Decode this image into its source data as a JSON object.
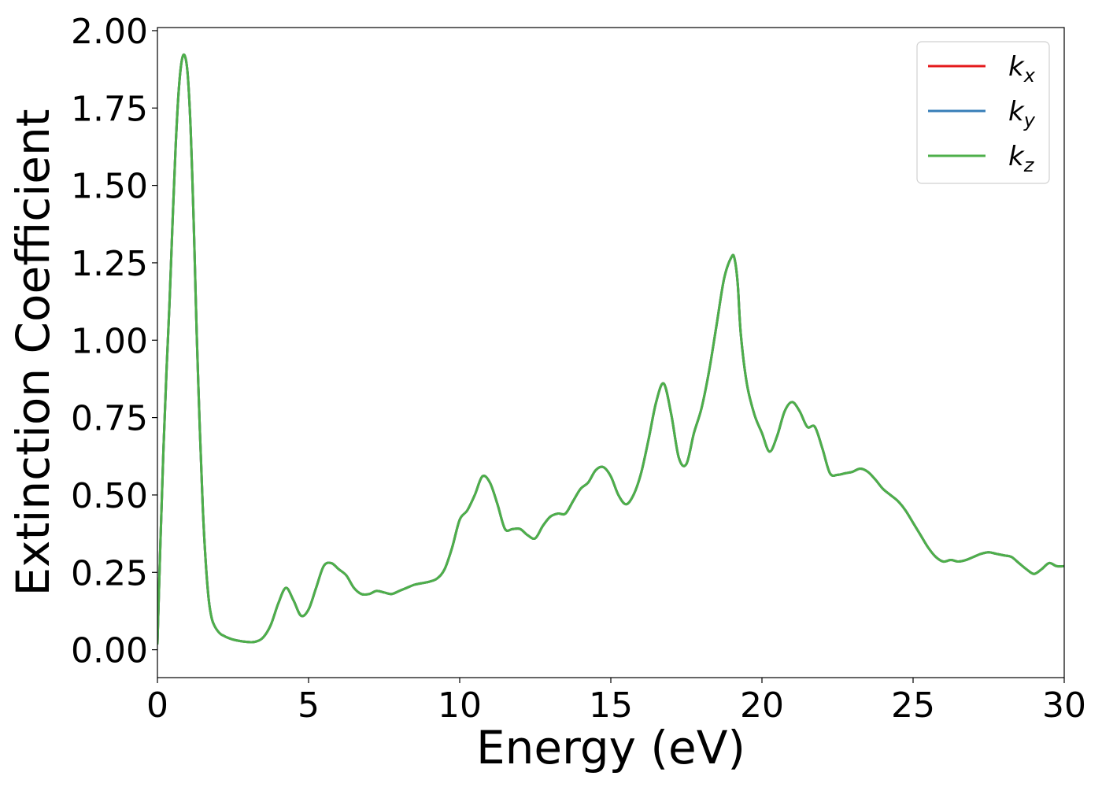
{
  "chart_data": {
    "type": "line",
    "title": "",
    "xlabel": "Energy (eV)",
    "ylabel": "Extinction Coefficient",
    "xlim": [
      0,
      30
    ],
    "ylim": [
      -0.09,
      2.01
    ],
    "xticks": [
      0,
      5,
      10,
      15,
      20,
      25,
      30
    ],
    "xtick_labels": [
      "0",
      "5",
      "10",
      "15",
      "20",
      "25",
      "30"
    ],
    "yticks": [
      0.0,
      0.25,
      0.5,
      0.75,
      1.0,
      1.25,
      1.5,
      1.75,
      2.0
    ],
    "ytick_labels": [
      "0.00",
      "0.25",
      "0.50",
      "0.75",
      "1.00",
      "1.25",
      "1.50",
      "1.75",
      "2.00"
    ],
    "grid": false,
    "legend_position": "top-right",
    "x": [
      0,
      0.1,
      0.2,
      0.3,
      0.4,
      0.5,
      0.6,
      0.7,
      0.8,
      0.9,
      1.0,
      1.1,
      1.2,
      1.25,
      1.3,
      1.4,
      1.5,
      1.6,
      1.7,
      1.8,
      1.9,
      2.0,
      2.1,
      2.2,
      2.3,
      2.5,
      2.75,
      3.0,
      3.25,
      3.5,
      3.75,
      4.0,
      4.25,
      4.5,
      4.75,
      5.0,
      5.25,
      5.5,
      5.75,
      6.0,
      6.25,
      6.5,
      6.75,
      7.0,
      7.25,
      7.5,
      7.75,
      8.0,
      8.25,
      8.5,
      8.75,
      9.0,
      9.25,
      9.5,
      9.75,
      10.0,
      10.25,
      10.5,
      10.75,
      11.0,
      11.25,
      11.5,
      11.75,
      12.0,
      12.25,
      12.5,
      12.75,
      13.0,
      13.25,
      13.5,
      13.75,
      14.0,
      14.25,
      14.5,
      14.75,
      15.0,
      15.25,
      15.5,
      15.75,
      16.0,
      16.25,
      16.5,
      16.75,
      17.0,
      17.25,
      17.5,
      17.75,
      18.0,
      18.25,
      18.5,
      18.75,
      19.0,
      19.1,
      19.2,
      19.3,
      19.5,
      19.75,
      20.0,
      20.25,
      20.5,
      20.75,
      21.0,
      21.25,
      21.5,
      21.75,
      22.0,
      22.25,
      22.5,
      22.75,
      23.0,
      23.25,
      23.5,
      23.75,
      24.0,
      24.25,
      24.5,
      24.75,
      25.0,
      25.25,
      25.5,
      25.75,
      26.0,
      26.25,
      26.5,
      26.75,
      27.0,
      27.25,
      27.5,
      27.75,
      28.0,
      28.25,
      28.5,
      28.75,
      29.0,
      29.25,
      29.5,
      29.75,
      30.0
    ],
    "series": [
      {
        "name": "k_x",
        "color": "#e41a1c",
        "y": [
          0.02,
          0.35,
          0.65,
          0.9,
          1.12,
          1.38,
          1.62,
          1.8,
          1.9,
          1.92,
          1.86,
          1.68,
          1.38,
          1.2,
          1.02,
          0.72,
          0.46,
          0.28,
          0.16,
          0.1,
          0.075,
          0.06,
          0.05,
          0.045,
          0.04,
          0.033,
          0.028,
          0.025,
          0.026,
          0.04,
          0.08,
          0.15,
          0.2,
          0.16,
          0.11,
          0.13,
          0.2,
          0.27,
          0.28,
          0.26,
          0.24,
          0.2,
          0.18,
          0.18,
          0.19,
          0.185,
          0.18,
          0.19,
          0.2,
          0.21,
          0.215,
          0.22,
          0.23,
          0.26,
          0.33,
          0.42,
          0.45,
          0.5,
          0.56,
          0.54,
          0.47,
          0.39,
          0.39,
          0.39,
          0.37,
          0.36,
          0.4,
          0.43,
          0.44,
          0.44,
          0.48,
          0.52,
          0.54,
          0.58,
          0.59,
          0.56,
          0.5,
          0.47,
          0.5,
          0.57,
          0.68,
          0.8,
          0.86,
          0.76,
          0.62,
          0.6,
          0.7,
          0.78,
          0.9,
          1.05,
          1.2,
          1.27,
          1.26,
          1.18,
          1.02,
          0.86,
          0.76,
          0.7,
          0.64,
          0.69,
          0.77,
          0.8,
          0.77,
          0.72,
          0.72,
          0.65,
          0.57,
          0.565,
          0.57,
          0.575,
          0.585,
          0.575,
          0.55,
          0.52,
          0.5,
          0.48,
          0.45,
          0.41,
          0.37,
          0.33,
          0.3,
          0.285,
          0.29,
          0.285,
          0.29,
          0.3,
          0.31,
          0.315,
          0.31,
          0.305,
          0.3,
          0.28,
          0.26,
          0.245,
          0.26,
          0.28,
          0.27,
          0.27
        ]
      },
      {
        "name": "k_y",
        "color": "#377eb8",
        "y": [
          0.02,
          0.35,
          0.65,
          0.9,
          1.12,
          1.38,
          1.62,
          1.8,
          1.9,
          1.92,
          1.86,
          1.68,
          1.38,
          1.2,
          1.02,
          0.72,
          0.46,
          0.28,
          0.16,
          0.1,
          0.075,
          0.06,
          0.05,
          0.045,
          0.04,
          0.033,
          0.028,
          0.025,
          0.026,
          0.04,
          0.08,
          0.15,
          0.2,
          0.16,
          0.11,
          0.13,
          0.2,
          0.27,
          0.28,
          0.26,
          0.24,
          0.2,
          0.18,
          0.18,
          0.19,
          0.185,
          0.18,
          0.19,
          0.2,
          0.21,
          0.215,
          0.22,
          0.23,
          0.26,
          0.33,
          0.42,
          0.45,
          0.5,
          0.56,
          0.54,
          0.47,
          0.39,
          0.39,
          0.39,
          0.37,
          0.36,
          0.4,
          0.43,
          0.44,
          0.44,
          0.48,
          0.52,
          0.54,
          0.58,
          0.59,
          0.56,
          0.5,
          0.47,
          0.5,
          0.57,
          0.68,
          0.8,
          0.86,
          0.76,
          0.62,
          0.6,
          0.7,
          0.78,
          0.9,
          1.05,
          1.2,
          1.27,
          1.26,
          1.18,
          1.02,
          0.86,
          0.76,
          0.7,
          0.64,
          0.69,
          0.77,
          0.8,
          0.77,
          0.72,
          0.72,
          0.65,
          0.57,
          0.565,
          0.57,
          0.575,
          0.585,
          0.575,
          0.55,
          0.52,
          0.5,
          0.48,
          0.45,
          0.41,
          0.37,
          0.33,
          0.3,
          0.285,
          0.29,
          0.285,
          0.29,
          0.3,
          0.31,
          0.315,
          0.31,
          0.305,
          0.3,
          0.28,
          0.26,
          0.245,
          0.26,
          0.28,
          0.27,
          0.27
        ]
      },
      {
        "name": "k_z",
        "color": "#4daf4a",
        "y": [
          0.02,
          0.35,
          0.65,
          0.9,
          1.12,
          1.38,
          1.62,
          1.8,
          1.9,
          1.92,
          1.86,
          1.68,
          1.38,
          1.2,
          1.02,
          0.72,
          0.46,
          0.28,
          0.16,
          0.1,
          0.075,
          0.06,
          0.05,
          0.045,
          0.04,
          0.033,
          0.028,
          0.025,
          0.026,
          0.04,
          0.08,
          0.15,
          0.2,
          0.16,
          0.11,
          0.13,
          0.2,
          0.27,
          0.28,
          0.26,
          0.24,
          0.2,
          0.18,
          0.18,
          0.19,
          0.185,
          0.18,
          0.19,
          0.2,
          0.21,
          0.215,
          0.22,
          0.23,
          0.26,
          0.33,
          0.42,
          0.45,
          0.5,
          0.56,
          0.54,
          0.47,
          0.39,
          0.39,
          0.39,
          0.37,
          0.36,
          0.4,
          0.43,
          0.44,
          0.44,
          0.48,
          0.52,
          0.54,
          0.58,
          0.59,
          0.56,
          0.5,
          0.47,
          0.5,
          0.57,
          0.68,
          0.8,
          0.86,
          0.76,
          0.62,
          0.6,
          0.7,
          0.78,
          0.9,
          1.05,
          1.2,
          1.27,
          1.26,
          1.18,
          1.02,
          0.86,
          0.76,
          0.7,
          0.64,
          0.69,
          0.77,
          0.8,
          0.77,
          0.72,
          0.72,
          0.65,
          0.57,
          0.565,
          0.57,
          0.575,
          0.585,
          0.575,
          0.55,
          0.52,
          0.5,
          0.48,
          0.45,
          0.41,
          0.37,
          0.33,
          0.3,
          0.285,
          0.29,
          0.285,
          0.29,
          0.3,
          0.31,
          0.315,
          0.31,
          0.305,
          0.3,
          0.28,
          0.26,
          0.245,
          0.26,
          0.28,
          0.27,
          0.27
        ]
      }
    ],
    "legend": [
      {
        "base": "k",
        "sub": "x",
        "color": "#e41a1c"
      },
      {
        "base": "k",
        "sub": "y",
        "color": "#377eb8"
      },
      {
        "base": "k",
        "sub": "z",
        "color": "#4daf4a"
      }
    ]
  }
}
